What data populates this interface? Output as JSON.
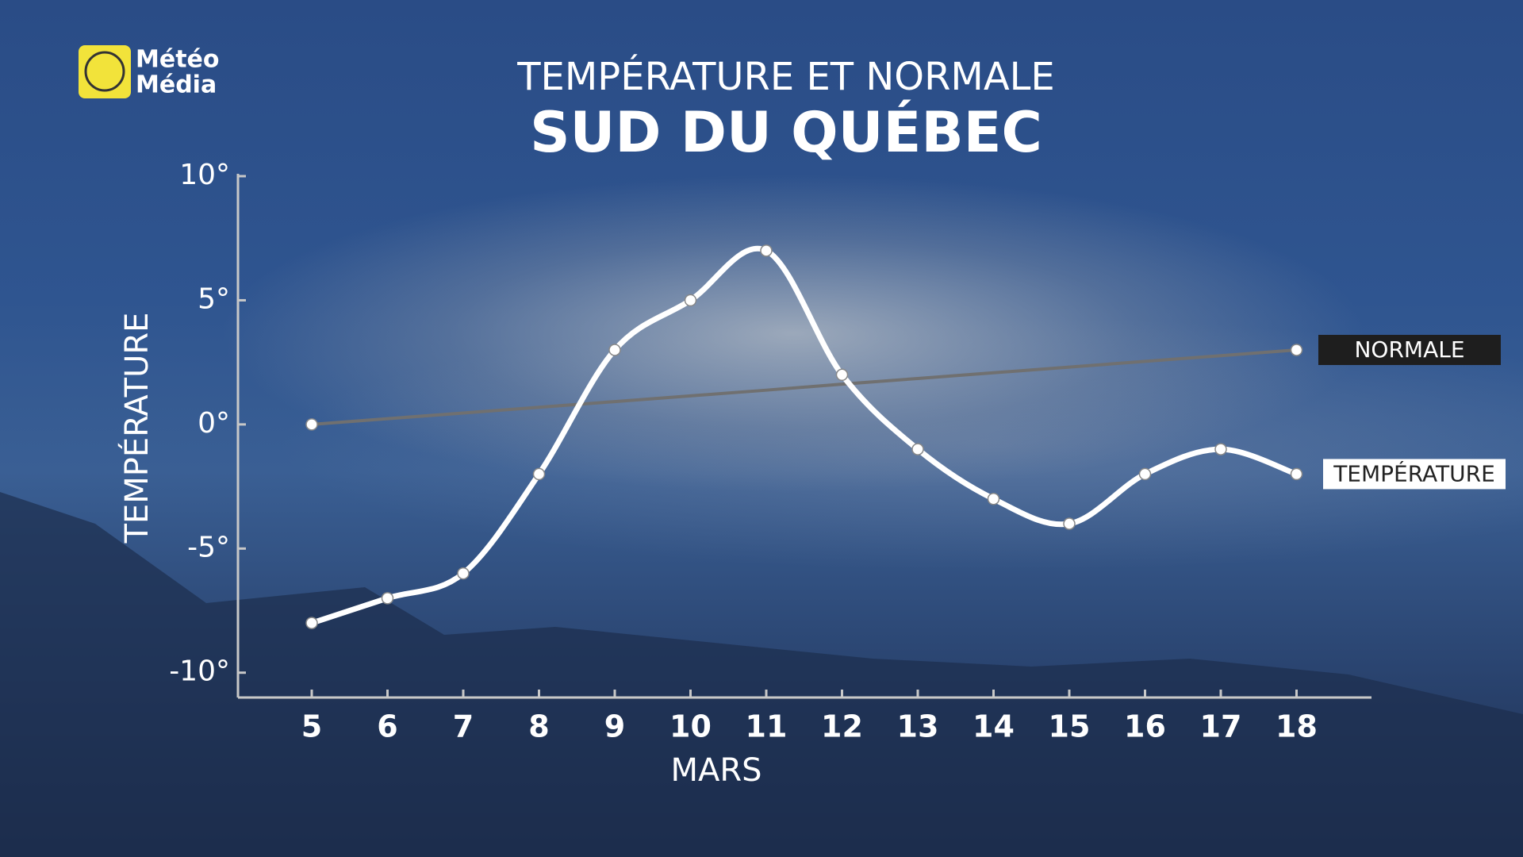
{
  "brand": {
    "line1": "Météo",
    "line2": "Média"
  },
  "chart_data": {
    "type": "line",
    "title": "TEMPÉRATURE ET NORMALE",
    "subtitle": "SUD DU QUÉBEC",
    "x_label": "MARS",
    "y_label": "TEMPÉRATURE",
    "categories": [
      "5",
      "6",
      "7",
      "8",
      "9",
      "10",
      "11",
      "12",
      "13",
      "14",
      "15",
      "16",
      "17",
      "18"
    ],
    "series": [
      {
        "name": "NORMALE",
        "color": "#707070",
        "values": [
          0,
          0.23,
          0.46,
          0.69,
          0.92,
          1.15,
          1.38,
          1.62,
          1.85,
          2.08,
          2.31,
          2.54,
          2.77,
          3
        ]
      },
      {
        "name": "TEMPÉRATURE",
        "color": "#ffffff",
        "values": [
          -8,
          -7,
          -6,
          -2,
          3,
          5,
          7,
          2,
          -1,
          -3,
          -4,
          -2,
          -1,
          -2
        ]
      }
    ],
    "ylim": [
      -11,
      10
    ],
    "yticks": [
      {
        "value": -10,
        "label": "-10°"
      },
      {
        "value": -5,
        "label": "-5°"
      },
      {
        "value": 0,
        "label": "0°"
      },
      {
        "value": 5,
        "label": "5°"
      },
      {
        "value": 10,
        "label": "10°"
      }
    ],
    "grid": false
  }
}
